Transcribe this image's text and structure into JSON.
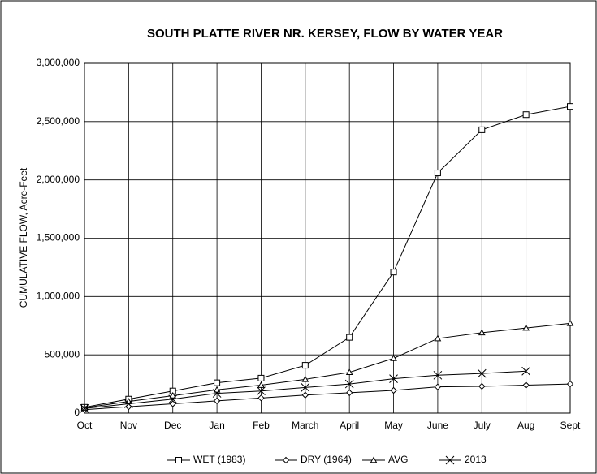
{
  "chart_data": {
    "type": "line",
    "title": "SOUTH PLATTE RIVER NR. KERSEY, FLOW BY WATER YEAR",
    "y_label": "CUMULATIVE FLOW, Acre-Feet",
    "categories": [
      "Oct",
      "Nov",
      "Dec",
      "Jan",
      "Feb",
      "March",
      "April",
      "May",
      "June",
      "July",
      "Aug",
      "Sept"
    ],
    "series": [
      {
        "name": "WET (1983)",
        "color": "#000000",
        "marker": "square",
        "values": [
          50000,
          120000,
          190000,
          260000,
          300000,
          410000,
          650000,
          1210000,
          2060000,
          2430000,
          2560000,
          2630000
        ]
      },
      {
        "name": "DRY (1964)",
        "color": "#000000",
        "marker": "diamond",
        "values": [
          30000,
          55000,
          80000,
          105000,
          130000,
          155000,
          175000,
          195000,
          225000,
          230000,
          240000,
          250000
        ]
      },
      {
        "name": "AVG",
        "color": "#000000",
        "marker": "triangle",
        "values": [
          45000,
          100000,
          150000,
          200000,
          240000,
          290000,
          350000,
          470000,
          640000,
          690000,
          730000,
          770000
        ]
      },
      {
        "name": "2013",
        "color": "#000000",
        "marker": "x",
        "values": [
          40000,
          80000,
          120000,
          170000,
          190000,
          220000,
          250000,
          295000,
          325000,
          340000,
          360000,
          null
        ]
      }
    ],
    "ylim": [
      0,
      3000000
    ],
    "yticks": [
      0,
      {
        "value": 500000,
        "label": "500,000"
      },
      {
        "value": 1000000,
        "label": "1,000,000"
      },
      {
        "value": 1500000,
        "label": "1,500,000"
      },
      {
        "value": 2000000,
        "label": "2,000,000"
      },
      {
        "value": 2500000,
        "label": "2,500,000"
      },
      {
        "value": 3000000,
        "label": "3,000,000"
      }
    ],
    "grid": true,
    "legend": "bottom"
  }
}
